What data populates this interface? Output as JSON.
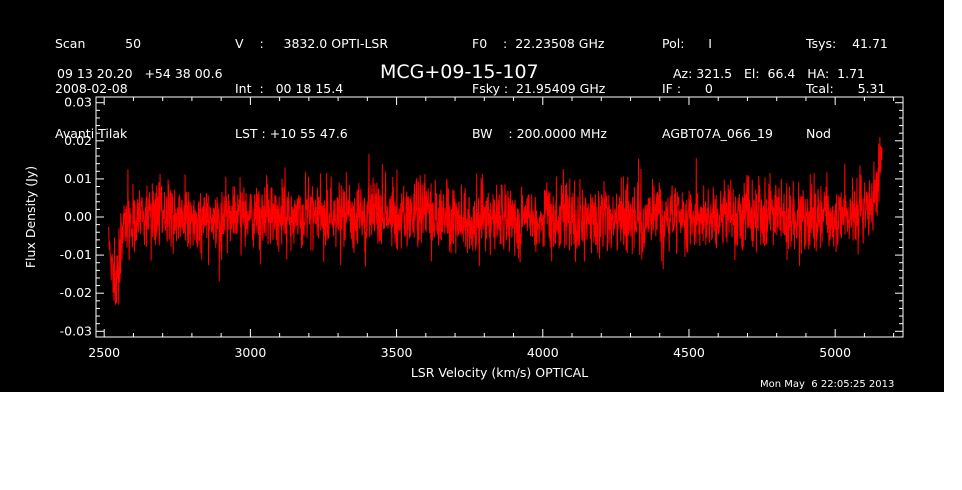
{
  "header": {
    "col1": [
      "Scan          50",
      "2008-02-08",
      "Avanti Tilak"
    ],
    "col2": [
      "V    :     3832.0 OPTI-LSR",
      "Int  :   00 18 15.4",
      "LST : +10 55 47.6"
    ],
    "col3": [
      "F0    :  22.23508 GHz",
      "Fsky :  21.95409 GHz",
      "BW    : 200.0000 MHz"
    ],
    "col4": [
      "Pol:      I",
      "IF :      0",
      "AGBT07A_066_19"
    ],
    "col5": [
      "Tsys:    41.71",
      "Tcal:      5.31",
      "Nod"
    ],
    "coords": "09 13 20.20   +54 38 00.6",
    "source": "MCG+09-15-107",
    "azel": "Az: 321.5   El:  66.4   HA:  1.71",
    "timestamp": "Mon May  6 22:05:25 2013"
  },
  "colors": {
    "background": "#000000",
    "axes": "#ffffff",
    "series": "#ff0000"
  },
  "chart_data": {
    "type": "line",
    "xlabel": "LSR Velocity (km/s) OPTICAL",
    "ylabel": "Flux Density (Jy)",
    "xlim": [
      2472,
      5232
    ],
    "ylim": [
      -0.0315,
      0.0315
    ],
    "xticks": [
      2500,
      3000,
      3500,
      4000,
      4500,
      5000
    ],
    "xtick_labels": [
      "2500",
      "3000",
      "3500",
      "4000",
      "4500",
      "5000"
    ],
    "yticks": [
      -0.03,
      -0.02,
      -0.01,
      0.0,
      0.01,
      0.02,
      0.03
    ],
    "ytick_labels": [
      "-0.03",
      "-0.02",
      "-0.01",
      "0.00",
      "0.01",
      "0.02",
      "0.03"
    ],
    "series": [
      {
        "x_range": [
          2515,
          5160
        ],
        "n_points": 2600,
        "baseline_y": 0.0,
        "noise_sigma_y": 0.0045,
        "edge_profile_x": [
          2515,
          2525,
          2535,
          2545,
          2560,
          2590,
          2620,
          5050,
          5100,
          5130,
          5150,
          5160
        ],
        "edge_profile_y": [
          -0.005,
          -0.014,
          -0.017,
          -0.013,
          -0.006,
          -0.003,
          0.0,
          0.0,
          0.002,
          0.005,
          0.011,
          0.019
        ],
        "y_min": -0.023,
        "y_max": 0.021
      }
    ]
  }
}
